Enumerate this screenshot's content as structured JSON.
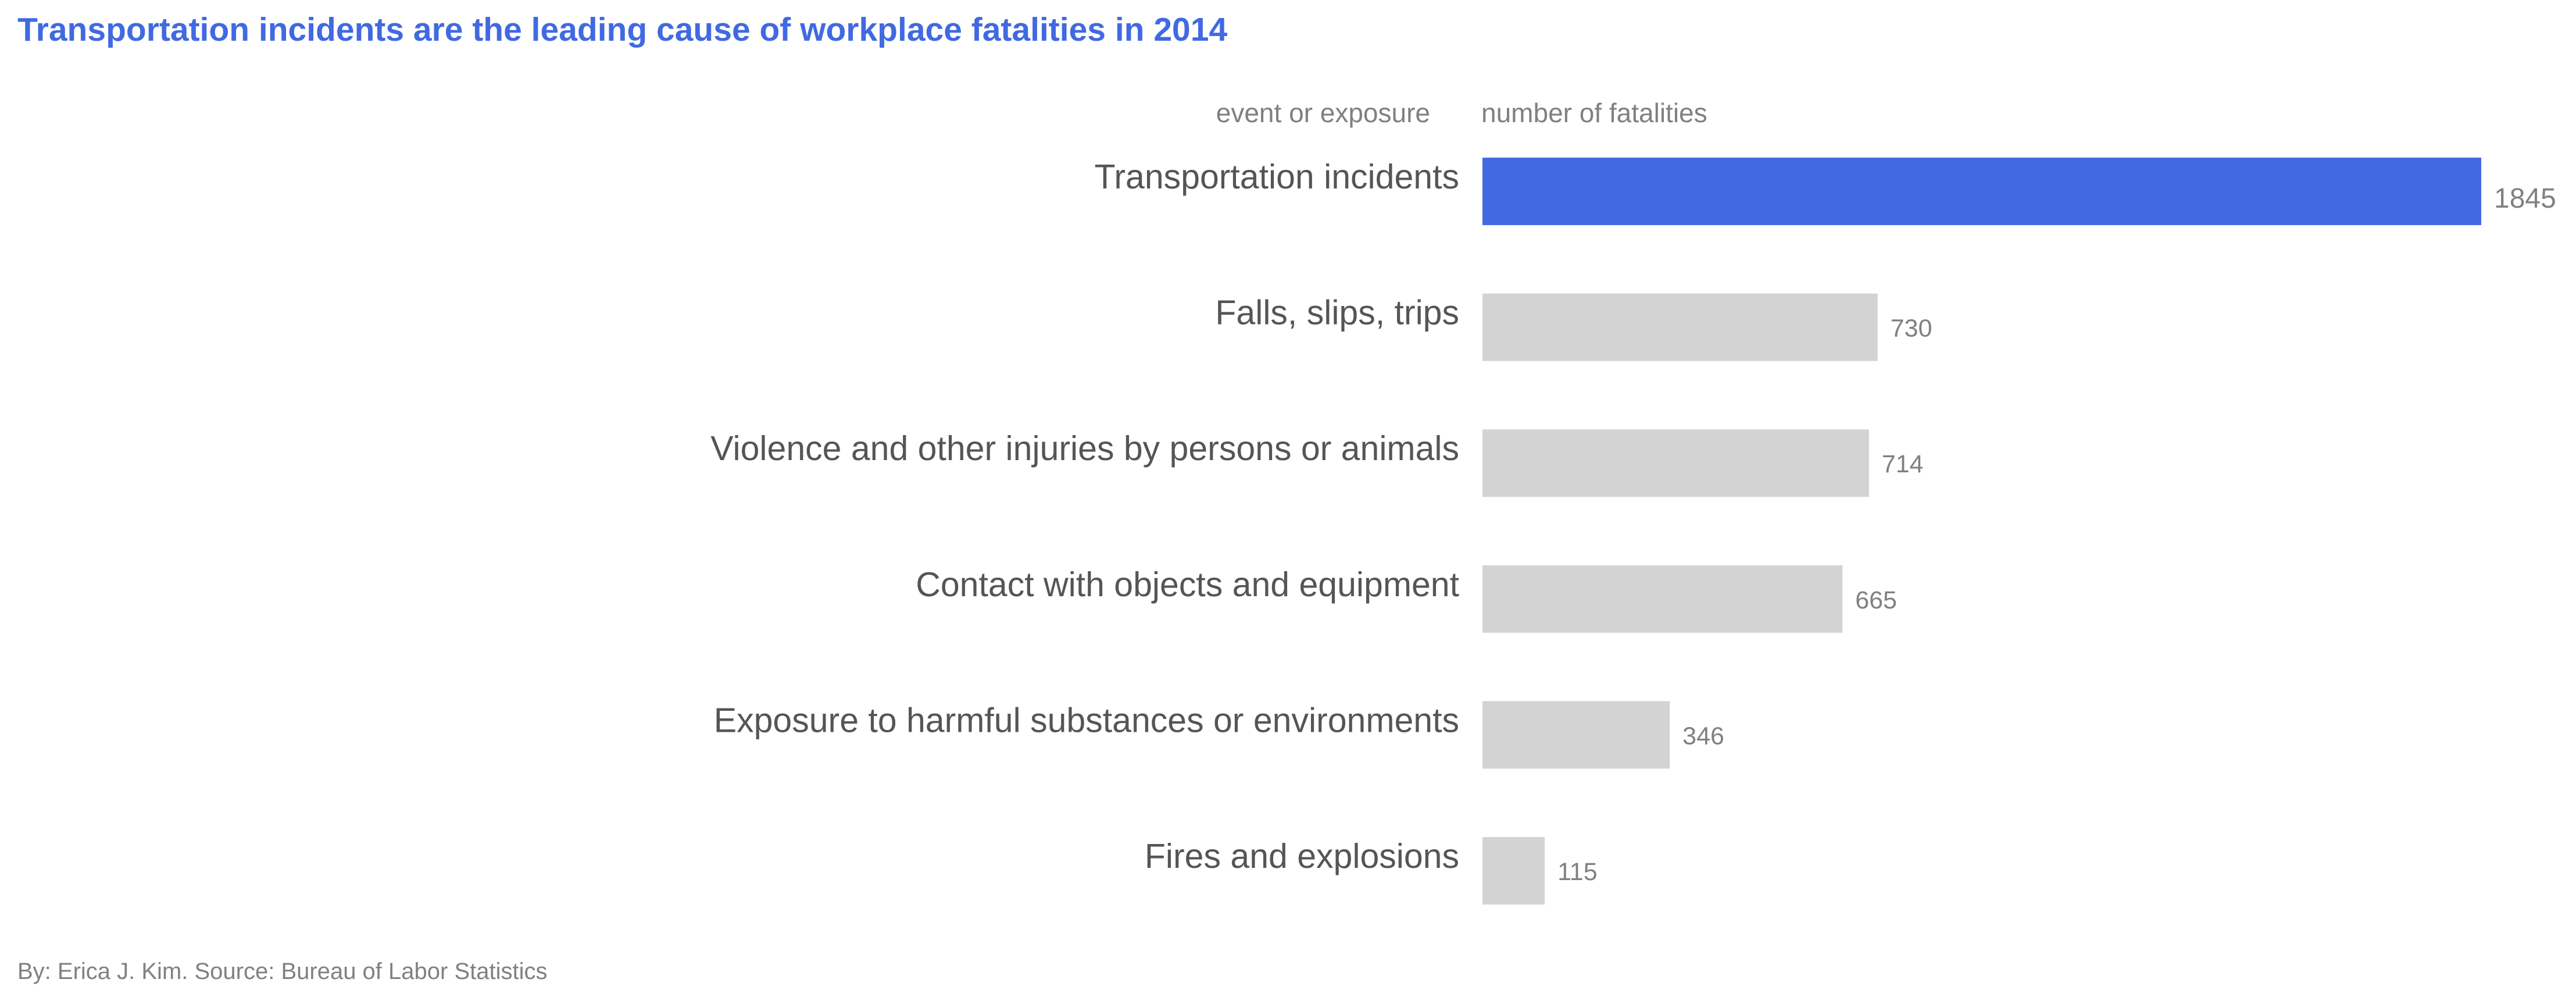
{
  "chart_data": {
    "type": "bar",
    "orientation": "horizontal",
    "title": "Transportation incidents are the leading cause of workplace fatalities in 2014",
    "category_header": "event or exposure",
    "value_header": "number of fatalities",
    "categories": [
      "Transportation incidents",
      "Falls, slips, trips",
      "Violence and other injuries by persons or animals",
      "Contact with objects and equipment",
      "Exposure to harmful substances or environments",
      "Fires and explosions"
    ],
    "values": [
      1845,
      730,
      714,
      665,
      346,
      115
    ],
    "highlight_index": 0,
    "xlim": [
      0,
      1845
    ],
    "grid": false,
    "credit": "By: Erica J. Kim. Source: Bureau of Labor Statistics"
  },
  "colors": {
    "title": "#4169e1",
    "highlight_bar": "#4169e1",
    "highlight_label": "#4169e1",
    "default_bar": "#d3d3d3",
    "category_text": "#555555",
    "muted_text": "#808080"
  }
}
